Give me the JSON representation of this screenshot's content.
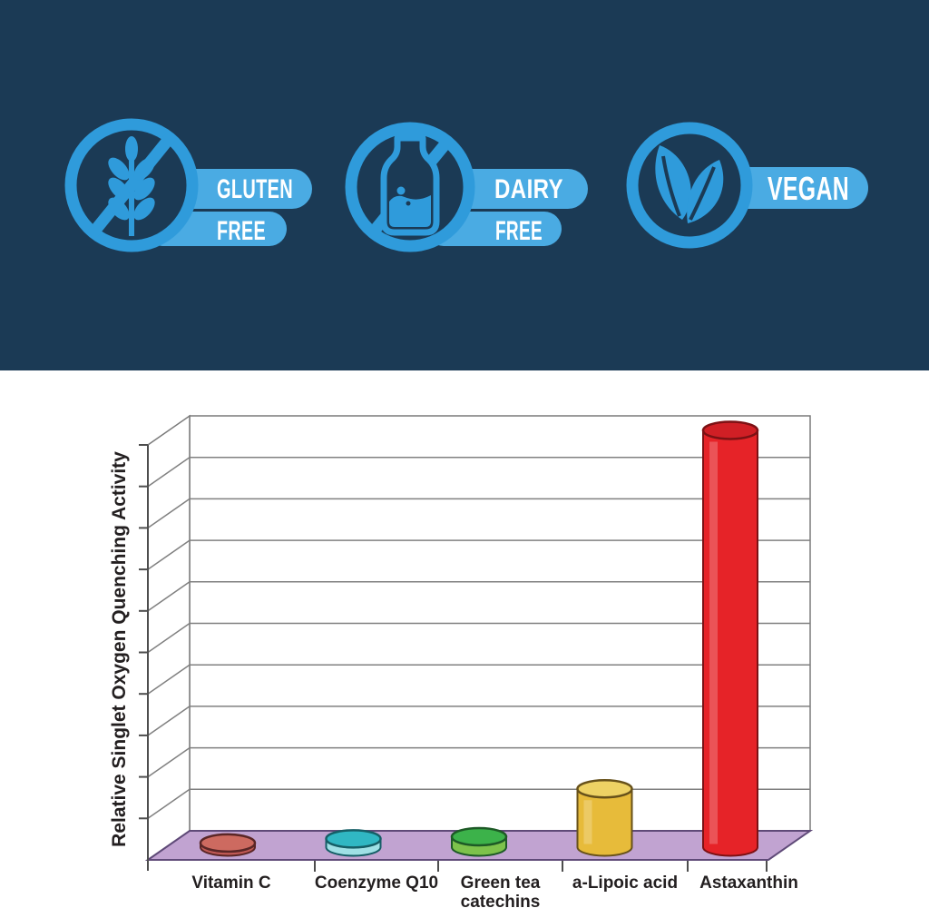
{
  "hero": {
    "background_color": "#1b3a55",
    "icon_color": "#2f9bdb",
    "pill_color": "#4aabe3",
    "text_color": "#ffffff",
    "badges": [
      {
        "id": "gluten-free",
        "icon": "wheat-slash-icon",
        "line1": "GLUTEN",
        "line2": "FREE"
      },
      {
        "id": "dairy-free",
        "icon": "milk-bottle-slash-icon",
        "line1": "DAIRY",
        "line2": "FREE"
      },
      {
        "id": "vegan",
        "icon": "leaves-icon",
        "line1": "VEGAN"
      }
    ]
  },
  "chart_data": {
    "type": "bar",
    "subtype": "3d-cylinder-columns",
    "title": "",
    "xlabel": "",
    "ylabel": "Relative Singlet Oxygen Quenching Activity",
    "categories": [
      "Vitamin C",
      "Coenzyme Q10",
      "Green tea catechins",
      "a-Lipoic acid",
      "Astaxanthin"
    ],
    "values": [
      1,
      2,
      2.5,
      14,
      100
    ],
    "values_note": "estimated bar heights as percent of tallest bar; y-axis shows no numeric tick labels",
    "gridline_intervals": 10,
    "grid": true,
    "legend": "none",
    "floor_color": "#c1a3d1",
    "gridline_color": "#808080",
    "label_color": "#231f20",
    "bar_styles": [
      {
        "top": "#cd6a60",
        "side": "#c05a55",
        "stroke": "#5a2626"
      },
      {
        "top": "#30b7c3",
        "side": "#9fe0e5",
        "stroke": "#155e66"
      },
      {
        "top": "#3cb24a",
        "side": "#7dc24b",
        "stroke": "#1d5a26"
      },
      {
        "top": "#eed264",
        "side": "#e7bb3a",
        "stroke": "#67511a"
      },
      {
        "top": "#d01f25",
        "side": "#e62328",
        "stroke": "#7c1114"
      }
    ]
  }
}
